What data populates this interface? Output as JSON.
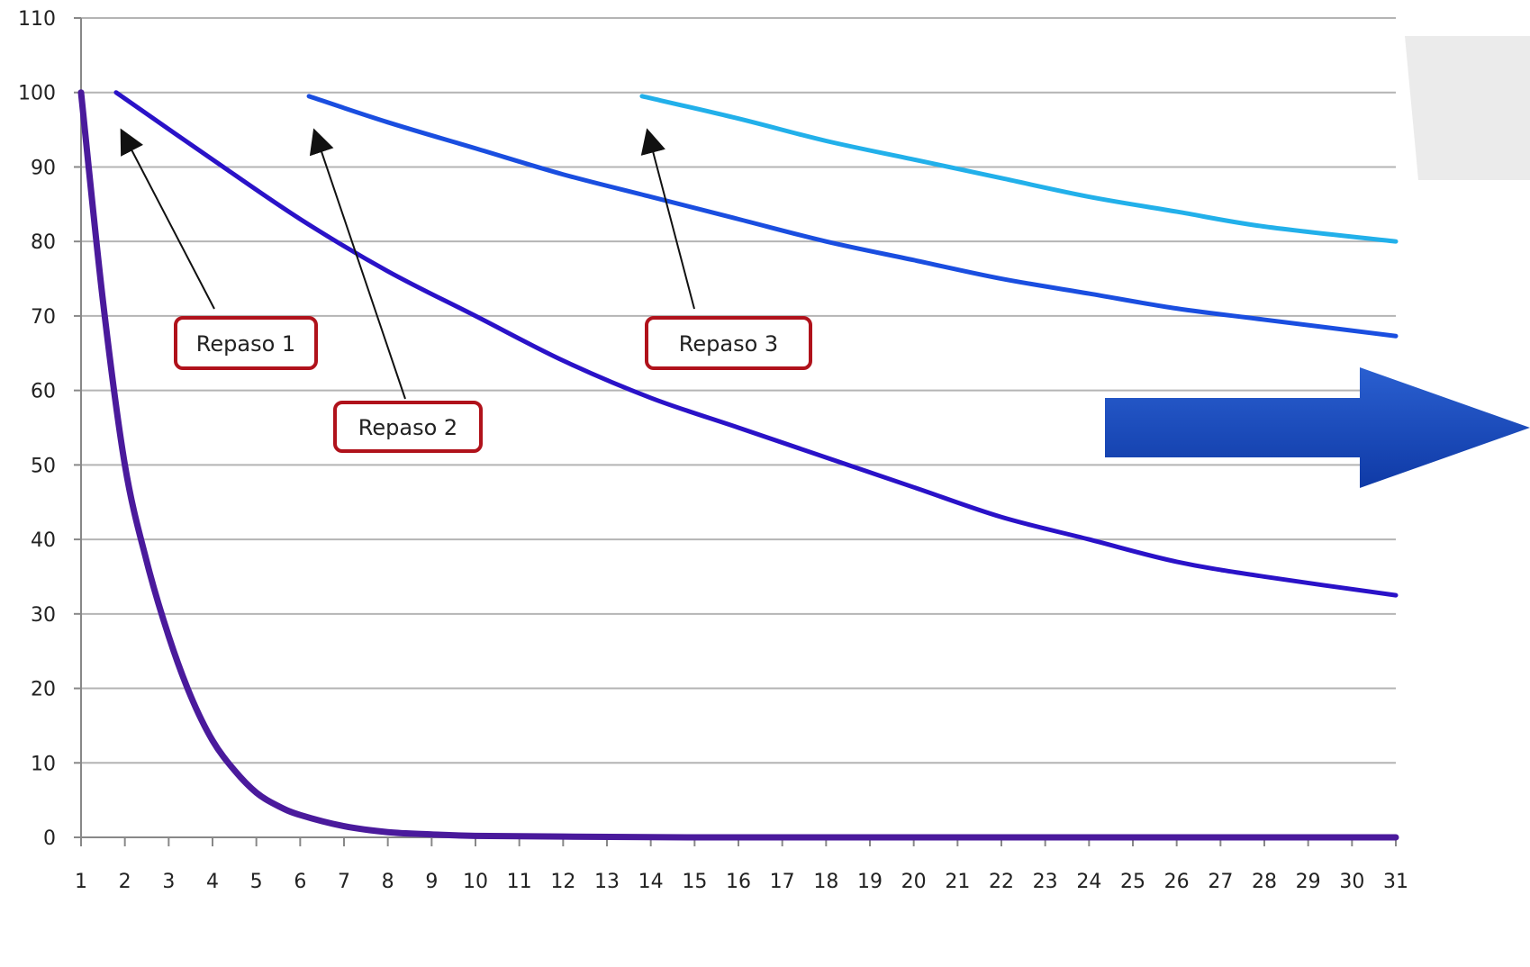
{
  "chart_data": {
    "type": "line",
    "title": "",
    "xlabel": "",
    "ylabel": "",
    "xlim": [
      1,
      31
    ],
    "ylim": [
      0,
      110
    ],
    "x_ticks": [
      1,
      2,
      3,
      4,
      5,
      6,
      7,
      8,
      9,
      10,
      11,
      12,
      13,
      14,
      15,
      16,
      17,
      18,
      19,
      20,
      21,
      22,
      23,
      24,
      25,
      26,
      27,
      28,
      29,
      30,
      31
    ],
    "y_ticks": [
      0,
      10,
      20,
      30,
      40,
      50,
      60,
      70,
      80,
      90,
      100,
      110
    ],
    "grid": "horizontal",
    "legend": "none",
    "series": [
      {
        "color": "#4a1a9c",
        "x": [
          1,
          1.5,
          2,
          2.5,
          3,
          3.5,
          4,
          4.5,
          5,
          5.5,
          6,
          7,
          8,
          9,
          10,
          12,
          15,
          20,
          25,
          31
        ],
        "y": [
          100,
          72,
          50,
          37,
          27,
          19,
          13,
          9,
          6,
          4.2,
          3,
          1.5,
          0.7,
          0.4,
          0.2,
          0.1,
          0,
          0,
          0,
          0
        ]
      },
      {
        "color": "#2a12c8",
        "x": [
          1.8,
          4,
          6,
          8,
          10,
          12,
          14,
          16,
          18,
          20,
          22,
          24,
          26,
          28,
          31
        ],
        "y": [
          100,
          91,
          83,
          76,
          70,
          64,
          59,
          55,
          51,
          47,
          43,
          40,
          37,
          35,
          32.5
        ]
      },
      {
        "color": "#1a4ee0",
        "x": [
          6.2,
          8,
          10,
          12,
          14,
          16,
          18,
          20,
          22,
          24,
          26,
          28,
          31
        ],
        "y": [
          99.5,
          96,
          92.5,
          89,
          86,
          83,
          80,
          77.5,
          75,
          73,
          71,
          69.5,
          67.3
        ]
      },
      {
        "color": "#22b0ea",
        "x": [
          13.8,
          16,
          18,
          20,
          22,
          24,
          26,
          28,
          31
        ],
        "y": [
          99.5,
          96.5,
          93.5,
          91,
          88.5,
          86,
          84,
          82,
          80
        ]
      }
    ],
    "annotations": [
      {
        "text": "Repaso 1",
        "x": 1.8,
        "y": 99
      },
      {
        "text": "Repaso 2",
        "x": 6.2,
        "y": 99
      },
      {
        "text": "Repaso 3",
        "x": 13.8,
        "y": 99
      }
    ],
    "arrow_color": "#1a48b8"
  }
}
